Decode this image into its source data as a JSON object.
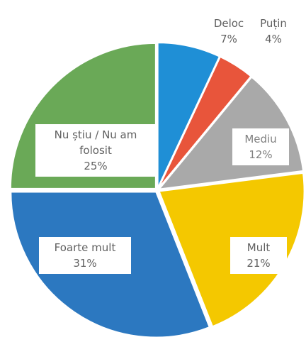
{
  "chart_data": {
    "type": "pie",
    "categories": [
      "Deloc",
      "Puțin",
      "Mediu",
      "Mult",
      "Foarte mult",
      "Nu știu / Nu am folosit"
    ],
    "values": [
      7,
      4,
      12,
      21,
      31,
      25
    ],
    "value_labels": [
      "7%",
      "4%",
      "12%",
      "21%",
      "31%",
      "25%"
    ],
    "colors": [
      "#1f8fd6",
      "#e8553b",
      "#a9a9a9",
      "#f4c800",
      "#2c78c0",
      "#6aa957"
    ]
  }
}
